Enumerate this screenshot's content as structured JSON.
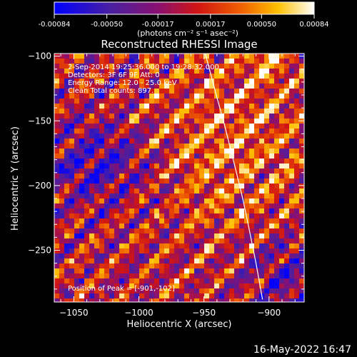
{
  "colorbar": {
    "ticks": [
      "-0.00084",
      "-0.00050",
      "-0.00017",
      "0.00017",
      "0.00050",
      "0.00084"
    ],
    "values": [
      -0.00084,
      -0.0005,
      -0.00017,
      0.00017,
      0.0005,
      0.00084
    ],
    "range": [
      -0.00084,
      0.00084
    ],
    "unit_label": "(photons cm⁻² s⁻¹ asec⁻²)"
  },
  "chart_data": {
    "type": "heatmap",
    "title": "Reconstructed RHESSI Image",
    "xlabel": "Heliocentric X (arcsec)",
    "ylabel": "Heliocentric Y (arcsec)",
    "xlim": [
      -1065,
      -873
    ],
    "ylim": [
      -290,
      -98
    ],
    "x_ticks": [
      -1050,
      -1000,
      -950,
      -900
    ],
    "y_ticks": [
      -100,
      -150,
      -200,
      -250
    ],
    "x_tick_labels": [
      "−1050",
      "−1000",
      "−950",
      "−900"
    ],
    "y_tick_labels": [
      "−100",
      "−150",
      "−200",
      "−250"
    ],
    "annotations": [
      "2-Sep-2014 19:25:36.000 to 19:28:32.000",
      "Detectors: 3F 6F 9F  Att: 0",
      "Energy Range: 12.0 - 25.0 keV",
      "Clean    Total counts: 897."
    ],
    "peak_label": "Position of Peak = [-901,-102]",
    "peak": [
      -901,
      -102
    ],
    "limb_curve": {
      "x": [
        -949,
        -945,
        -940,
        -935,
        -930,
        -925,
        -920,
        -915,
        -910,
        -905
      ],
      "y": [
        -98,
        -113,
        -132,
        -150,
        -170,
        -190,
        -211,
        -235,
        -260,
        -288
      ]
    },
    "colormap": "blue-purple-red-orange-yellow-white"
  },
  "footer": {
    "date": "16-May-2022 16:47"
  }
}
